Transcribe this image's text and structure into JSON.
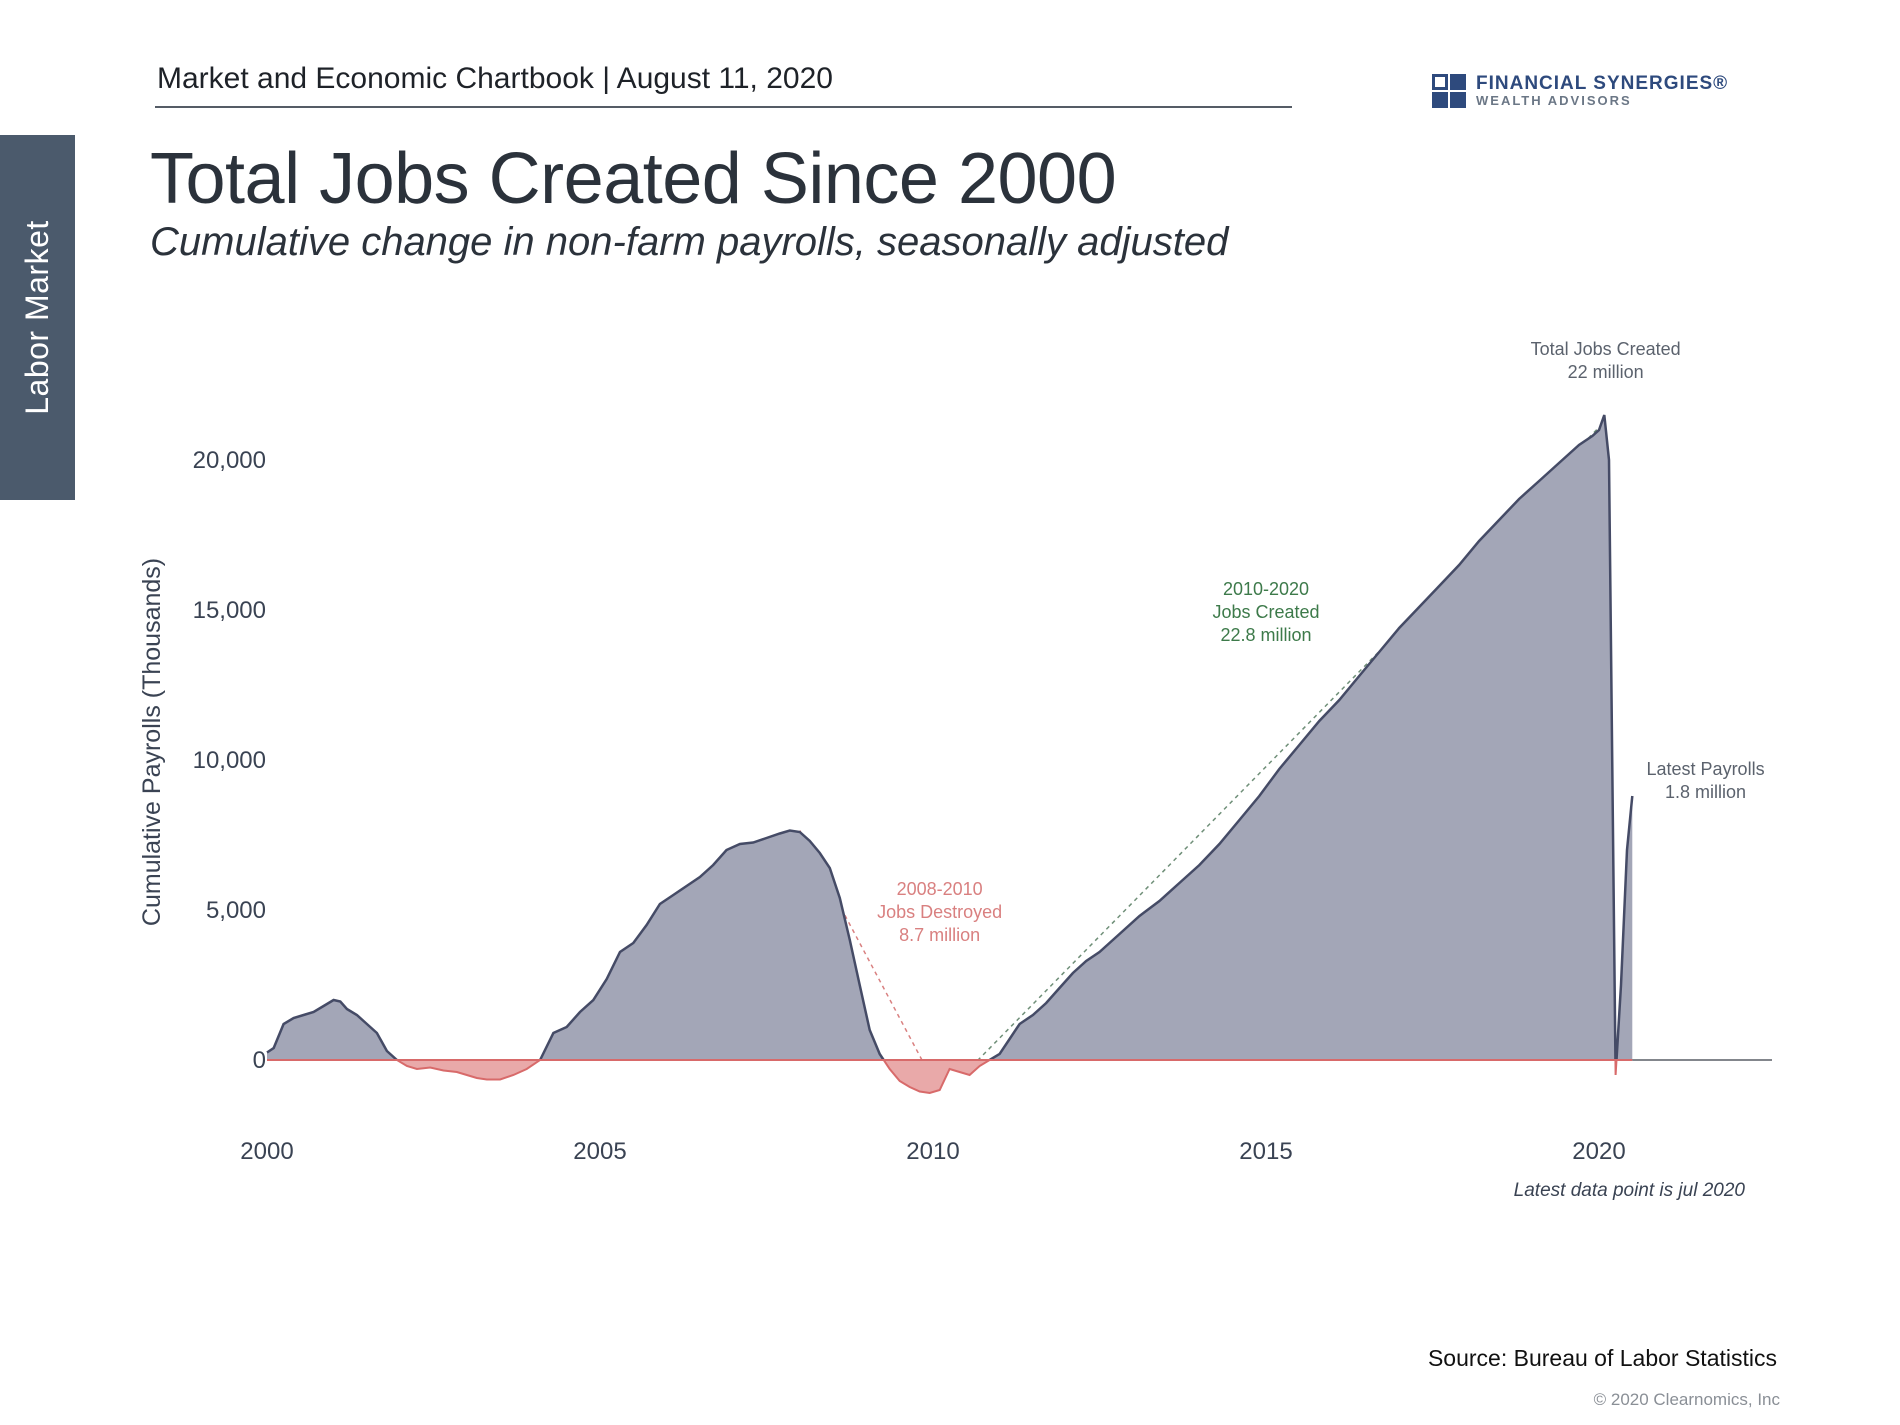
{
  "sidebar": {
    "section_label": "Labor Market"
  },
  "header": {
    "chartbook": "Market and Economic Chartbook | August 11, 2020",
    "logo_line1": "FINANCIAL SYNERGIES®",
    "logo_line2": "WEALTH ADVISORS",
    "logo_icon": "flag-grid-logo-icon"
  },
  "title": "Total Jobs Created Since 2000",
  "subtitle": "Cumulative change in non-farm payrolls, seasonally adjusted",
  "footer": {
    "source": "Source: Bureau of Labor Statistics",
    "copyright": "© 2020 Clearnomics, Inc"
  },
  "chart_data": {
    "type": "area",
    "title": "Total Jobs Created Since 2000",
    "ylabel": "Cumulative Payrolls (Thousands)",
    "xlabel": "",
    "xlim": [
      2000,
      2022.6
    ],
    "ylim": [
      -2300,
      22000
    ],
    "x_ticks": [
      2000,
      2005,
      2010,
      2015,
      2020
    ],
    "x_tick_labels": [
      "2000",
      "2005",
      "2010",
      "2015",
      "2020"
    ],
    "y_ticks": [
      0,
      5000,
      10000,
      15000,
      20000
    ],
    "y_tick_labels": [
      "0",
      "5,000",
      "10,000",
      "15,000",
      "20,000"
    ],
    "grid": false,
    "colors": {
      "positive_fill": "#a3a6b7",
      "positive_line": "#454b66",
      "negative_fill": "#e9a9a9",
      "negative_line": "#d86a6a",
      "annotation_green": "#3d7a4a",
      "annotation_red": "#d98080",
      "annotation_gray": "#5b626d"
    },
    "series": [
      {
        "x": [
          2000.0,
          2000.1,
          2000.25,
          2000.4,
          2000.55,
          2000.7,
          2000.85,
          2001.0,
          2001.1,
          2001.2,
          2001.35,
          2001.5,
          2001.65,
          2001.8,
          2001.95,
          2002.1,
          2002.25,
          2002.45,
          2002.65,
          2002.85,
          2003.0,
          2003.15,
          2003.3,
          2003.5,
          2003.7,
          2003.9,
          2004.1,
          2004.3,
          2004.5,
          2004.7,
          2004.9,
          2005.1,
          2005.3,
          2005.5,
          2005.7,
          2005.9,
          2006.1,
          2006.3,
          2006.5,
          2006.7,
          2006.9,
          2007.1,
          2007.3,
          2007.5,
          2007.7,
          2007.85,
          2008.0,
          2008.15,
          2008.3,
          2008.45,
          2008.6,
          2008.75,
          2008.9,
          2009.05,
          2009.2,
          2009.35,
          2009.5,
          2009.65,
          2009.8,
          2009.95,
          2010.1,
          2010.25,
          2010.4,
          2010.55,
          2010.7,
          2010.85,
          2011.0,
          2011.15,
          2011.3,
          2011.5,
          2011.7,
          2011.9,
          2012.1,
          2012.3,
          2012.5,
          2012.8,
          2013.1,
          2013.4,
          2013.7,
          2014.0,
          2014.3,
          2014.6,
          2014.9,
          2015.2,
          2015.5,
          2015.8,
          2016.1,
          2016.4,
          2016.7,
          2017.0,
          2017.3,
          2017.6,
          2017.9,
          2018.2,
          2018.5,
          2018.8,
          2019.1,
          2019.4,
          2019.7,
          2019.9,
          2020.0,
          2020.08,
          2020.15,
          2020.25,
          2020.33,
          2020.42,
          2020.5
        ],
        "values": [
          250,
          400,
          1200,
          1400,
          1500,
          1600,
          1800,
          2000,
          1950,
          1700,
          1500,
          1200,
          900,
          300,
          0,
          -200,
          -300,
          -250,
          -350,
          -400,
          -500,
          -600,
          -650,
          -650,
          -500,
          -300,
          0,
          900,
          1100,
          1600,
          2000,
          2700,
          3600,
          3900,
          4500,
          5200,
          5500,
          5800,
          6100,
          6500,
          7000,
          7200,
          7250,
          7400,
          7550,
          7650,
          7600,
          7300,
          6900,
          6400,
          5400,
          4000,
          2500,
          1000,
          200,
          -300,
          -700,
          -900,
          -1050,
          -1100,
          -1000,
          -300,
          -400,
          -500,
          -200,
          0,
          200,
          700,
          1200,
          1500,
          1900,
          2400,
          2900,
          3300,
          3600,
          4200,
          4800,
          5300,
          5900,
          6500,
          7200,
          8000,
          8800,
          9700,
          10500,
          11300,
          12000,
          12800,
          13600,
          14400,
          15100,
          15800,
          16500,
          17300,
          18000,
          18700,
          19300,
          19900,
          20500,
          20800,
          21000,
          21500,
          20000,
          -500,
          2500,
          7000,
          8800
        ]
      }
    ],
    "annotations": [
      {
        "text_lines": [
          "Total Jobs Created",
          "22 million"
        ],
        "x": 2020.1,
        "y": 21500,
        "color": "gray"
      },
      {
        "text_lines": [
          "2010-2020",
          "Jobs Created",
          "22.8 million"
        ],
        "x": 2015.0,
        "y": 15500,
        "color": "green"
      },
      {
        "text_lines": [
          "2008-2010",
          "Jobs Destroyed",
          "8.7 million"
        ],
        "x": 2010.1,
        "y": 5500,
        "color": "red"
      },
      {
        "text_lines": [
          "Latest Payrolls",
          "1.8 million"
        ],
        "x": 2021.6,
        "y": 9500,
        "color": "gray"
      }
    ],
    "trend_lines": [
      {
        "from": [
          2008.0,
          7650
        ],
        "to": [
          2010.05,
          -900
        ],
        "color": "red"
      },
      {
        "from": [
          2010.5,
          -400
        ],
        "to": [
          2020.05,
          21200
        ],
        "color": "green"
      }
    ],
    "note": "Latest data point is jul 2020"
  }
}
